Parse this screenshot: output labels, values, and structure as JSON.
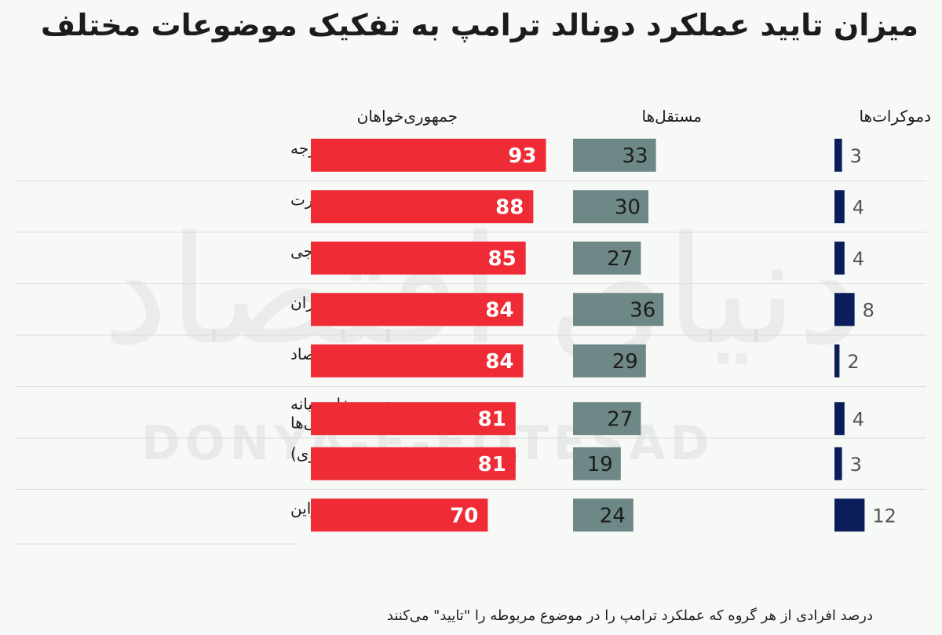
{
  "title": "میزان تایید عملکرد دونالد ترامپ به تفکیک موضوعات مختلف",
  "footnote": "درصد افرادی از هر گروه که عملکرد ترامپ را در موضوع مربوطه را \"تایید\" می‌کنند",
  "watermark": {
    "latin": "DONYA-E-EQTESAD",
    "persian": "دنیای اقتصاد"
  },
  "colors": {
    "republicans": "#ef2b36",
    "independents": "#6d8886",
    "democrats": "#0c1d5c",
    "divider": "#d9dcdc"
  },
  "chart_data": {
    "type": "bar",
    "categories": [
      "امور خارجه",
      "مهاجرت",
      "تجارت خارجی",
      "وضعیت با ایران",
      "اقتصاد",
      "وضعیت خاورمیانه بین اسرائیلی‌ها و فلسطینی‌ها",
      "بودجه فدرال (بودجه دولت مرکزی)",
      "وضعیت در اوکراین"
    ],
    "series": [
      {
        "name": "جمهوری‌خواهان",
        "values": [
          93,
          88,
          85,
          84,
          84,
          81,
          81,
          70
        ]
      },
      {
        "name": "مستقل‌ها",
        "values": [
          33,
          30,
          27,
          36,
          29,
          27,
          19,
          24
        ]
      },
      {
        "name": "دموکرات‌ها",
        "values": [
          3,
          4,
          4,
          8,
          2,
          4,
          3,
          12
        ]
      }
    ]
  }
}
